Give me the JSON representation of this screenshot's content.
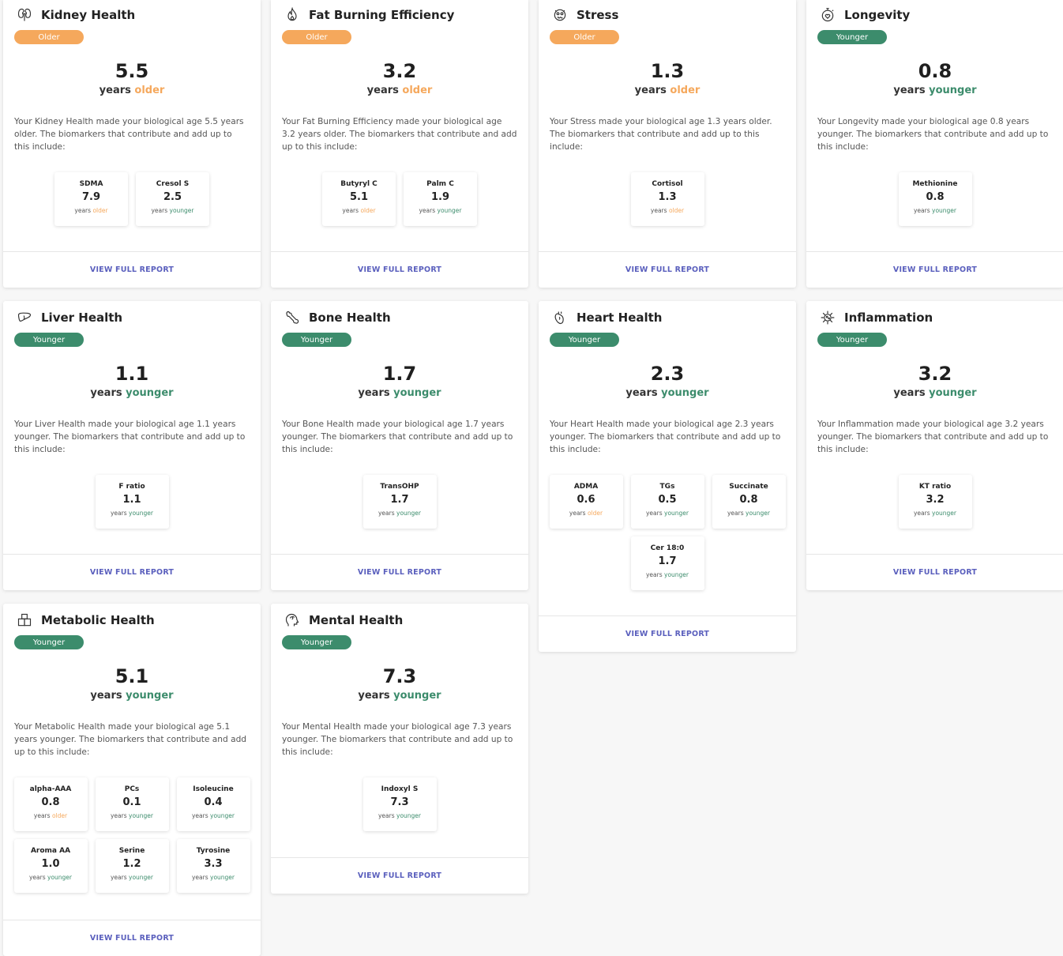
{
  "common": {
    "years_label": "years",
    "older_label": "older",
    "younger_label": "younger",
    "view_full_report": "VIEW FULL REPORT"
  },
  "cards": [
    {
      "title": "Kidney Health",
      "icon": "kidney-icon",
      "badge": "Older",
      "direction": "older",
      "value": "5.5",
      "description": "Your Kidney Health made your biological age 5.5 years older. The biomarkers that contribute and add up to this include:",
      "biomarkers": [
        {
          "name": "SDMA",
          "value": "7.9",
          "direction": "older"
        },
        {
          "name": "Cresol S",
          "value": "2.5",
          "direction": "younger"
        }
      ]
    },
    {
      "title": "Fat Burning Efficiency",
      "icon": "flame-icon",
      "badge": "Older",
      "direction": "older",
      "value": "3.2",
      "description": "Your Fat Burning Efficiency made your biological age 3.2 years older. The biomarkers that contribute and add up to this include:",
      "biomarkers": [
        {
          "name": "Butyryl C",
          "value": "5.1",
          "direction": "older"
        },
        {
          "name": "Palm C",
          "value": "1.9",
          "direction": "younger"
        }
      ]
    },
    {
      "title": "Stress",
      "icon": "stressed-face-icon",
      "badge": "Older",
      "direction": "older",
      "value": "1.3",
      "description": "Your Stress made your biological age 1.3 years older. The biomarkers that contribute and add up to this include:",
      "biomarkers": [
        {
          "name": "Cortisol",
          "value": "1.3",
          "direction": "older"
        }
      ]
    },
    {
      "title": "Longevity",
      "icon": "stopwatch-heart-icon",
      "badge": "Younger",
      "direction": "younger",
      "value": "0.8",
      "description": "Your Longevity made your biological age 0.8 years younger. The biomarkers that contribute and add up to this include:",
      "biomarkers": [
        {
          "name": "Methionine",
          "value": "0.8",
          "direction": "younger"
        }
      ]
    },
    {
      "title": "Liver Health",
      "icon": "liver-icon",
      "badge": "Younger",
      "direction": "younger",
      "value": "1.1",
      "description": "Your Liver Health made your biological age 1.1 years younger. The biomarkers that contribute and add up to this include:",
      "biomarkers": [
        {
          "name": "F ratio",
          "value": "1.1",
          "direction": "younger"
        }
      ]
    },
    {
      "title": "Bone Health",
      "icon": "bone-icon",
      "badge": "Younger",
      "direction": "younger",
      "value": "1.7",
      "description": "Your Bone Health made your biological age 1.7 years younger. The biomarkers that contribute and add up to this include:",
      "biomarkers": [
        {
          "name": "TransOHP",
          "value": "1.7",
          "direction": "younger"
        }
      ]
    },
    {
      "title": "Heart Health",
      "icon": "heart-organ-icon",
      "badge": "Younger",
      "direction": "younger",
      "value": "2.3",
      "description": "Your Heart Health made your biological age 2.3 years younger. The biomarkers that contribute and add up to this include:",
      "biomarkers": [
        {
          "name": "ADMA",
          "value": "0.6",
          "direction": "older"
        },
        {
          "name": "TGs",
          "value": "0.5",
          "direction": "younger"
        },
        {
          "name": "Succinate",
          "value": "0.8",
          "direction": "younger"
        },
        {
          "name": "Cer 18:0",
          "value": "1.7",
          "direction": "younger"
        }
      ]
    },
    {
      "title": "Inflammation",
      "icon": "virus-icon",
      "badge": "Younger",
      "direction": "younger",
      "value": "3.2",
      "description": "Your Inflammation made your biological age 3.2 years younger. The biomarkers that contribute and add up to this include:",
      "biomarkers": [
        {
          "name": "KT ratio",
          "value": "3.2",
          "direction": "younger"
        }
      ]
    },
    {
      "title": "Metabolic Health",
      "icon": "blocks-icon",
      "badge": "Younger",
      "direction": "younger",
      "value": "5.1",
      "description": "Your Metabolic Health made your biological age 5.1 years younger. The biomarkers that contribute and add up to this include:",
      "biomarkers": [
        {
          "name": "alpha-AAA",
          "value": "0.8",
          "direction": "older"
        },
        {
          "name": "PCs",
          "value": "0.1",
          "direction": "younger"
        },
        {
          "name": "Isoleucine",
          "value": "0.4",
          "direction": "younger"
        },
        {
          "name": "Aroma AA",
          "value": "1.0",
          "direction": "younger"
        },
        {
          "name": "Serine",
          "value": "1.2",
          "direction": "younger"
        },
        {
          "name": "Tyrosine",
          "value": "3.3",
          "direction": "younger"
        }
      ]
    },
    {
      "title": "Mental Health",
      "icon": "head-brain-icon",
      "badge": "Younger",
      "direction": "younger",
      "value": "7.3",
      "description": "Your Mental Health made your biological age 7.3 years younger. The biomarkers that contribute and add up to this include:",
      "biomarkers": [
        {
          "name": "Indoxyl S",
          "value": "7.3",
          "direction": "younger"
        }
      ]
    }
  ]
}
